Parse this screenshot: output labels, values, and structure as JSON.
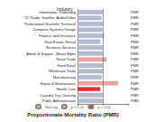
{
  "chart_data": {
    "type": "bar",
    "orientation": "horizontal",
    "stacked": true,
    "title": "Proportionate Mortality Ratio (PMR)",
    "ylabel": "Industry",
    "categories": [
      "Information, Publishing",
      "TV, Radio, Satellite, Audio/Video",
      "Professional Scientific Technical",
      "Computer Systems Design",
      "Finance and Insurance",
      "Real Estate, Rental",
      "Business Services",
      "Admin & Support, Waste Mgmt",
      "Retail Trade",
      "Food Retail",
      "Wholesale Trade",
      "Manufacturing",
      "Repair & Maintenance",
      "Health Care",
      "Laundry, Dry Cleaning",
      "Public Administration"
    ],
    "right_labels": [
      "PMR",
      "PMR",
      "PMR",
      "PMR",
      "PMR",
      "PMR",
      "PMR",
      "PMR",
      "PMR",
      "PMR",
      "PMR",
      "PMR",
      "PMR",
      "PMR",
      "PMR",
      "PMR"
    ],
    "series": [
      {
        "name": "Non-sig",
        "color": "#b4bcd4",
        "values": [
          1.0,
          0.95,
          1.0,
          0.98,
          1.05,
          0.9,
          1.0,
          1.0,
          null,
          1.0,
          1.0,
          0.95,
          null,
          null,
          1.0,
          1.0
        ]
      },
      {
        "name": "p < 0.05",
        "color": "#f4a0a0",
        "values": [
          null,
          null,
          null,
          null,
          null,
          null,
          null,
          null,
          1.15,
          null,
          null,
          null,
          1.6,
          null,
          null,
          null
        ]
      },
      {
        "name": "p < 0.01",
        "color": "#e03030",
        "values": [
          null,
          null,
          null,
          null,
          null,
          null,
          null,
          null,
          null,
          null,
          null,
          null,
          null,
          0.9,
          null,
          null
        ]
      }
    ],
    "reference_line": 1,
    "xlim": [
      0,
      2
    ],
    "xticks": [
      0,
      1,
      2
    ],
    "tick_labels": "y",
    "grid": false,
    "legend": "bottom"
  }
}
